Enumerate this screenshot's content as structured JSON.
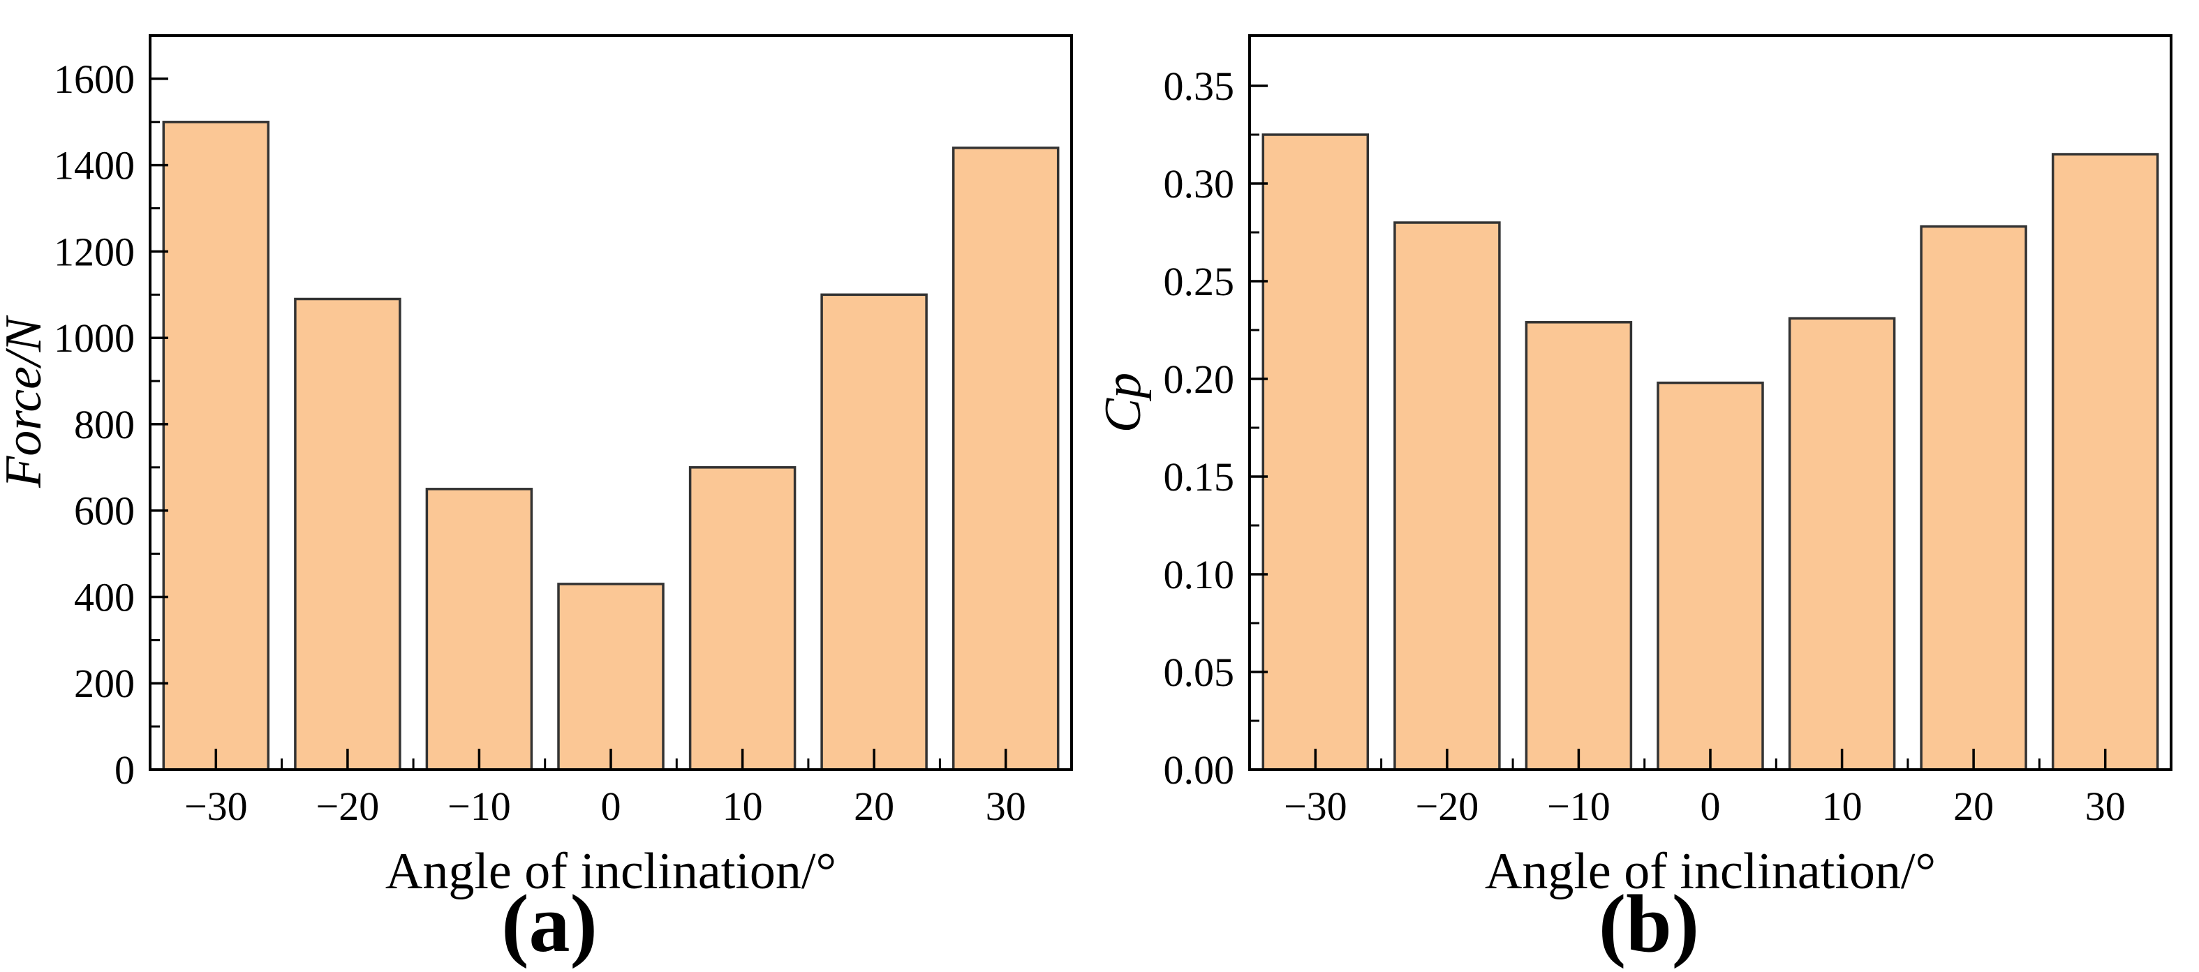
{
  "figure": {
    "colors": {
      "background": "#ffffff",
      "bar_fill": "#fbc795",
      "bar_edge": "#333333",
      "axis": "#000000",
      "text": "#000000"
    }
  },
  "chart_data": [
    {
      "id": "a",
      "type": "bar",
      "title": "",
      "categories": [
        -30,
        -20,
        -10,
        0,
        10,
        20,
        30
      ],
      "xtick_labels": [
        "−30",
        "−20",
        "−10",
        "0",
        "10",
        "20",
        "30"
      ],
      "values": [
        1500,
        1090,
        650,
        430,
        700,
        1100,
        1440
      ],
      "xlabel": "Angle of inclination/°",
      "ylabel": "Force/N",
      "ylim": [
        0,
        1700
      ],
      "yticks": [
        0,
        200,
        400,
        600,
        800,
        1000,
        1200,
        1400,
        1600
      ],
      "ytick_labels": [
        "0",
        "200",
        "400",
        "600",
        "800",
        "1000",
        "1200",
        "1400",
        "1600"
      ],
      "y_minor_step": 100,
      "grid": false,
      "legend": null,
      "caption": "(a)"
    },
    {
      "id": "b",
      "type": "bar",
      "title": "",
      "categories": [
        -30,
        -20,
        -10,
        0,
        10,
        20,
        30
      ],
      "xtick_labels": [
        "−30",
        "−20",
        "−10",
        "0",
        "10",
        "20",
        "30"
      ],
      "values": [
        0.325,
        0.28,
        0.229,
        0.198,
        0.231,
        0.278,
        0.315
      ],
      "xlabel": "Angle of inclination/°",
      "ylabel": "Cp",
      "ylim": [
        0,
        0.3757
      ],
      "yticks": [
        0,
        0.05,
        0.1,
        0.15,
        0.2,
        0.25,
        0.3,
        0.35
      ],
      "ytick_labels": [
        "0.00",
        "0.05",
        "0.10",
        "0.15",
        "0.20",
        "0.25",
        "0.30",
        "0.35"
      ],
      "y_minor_step": 0.025,
      "grid": false,
      "legend": null,
      "caption": "(b)"
    }
  ]
}
